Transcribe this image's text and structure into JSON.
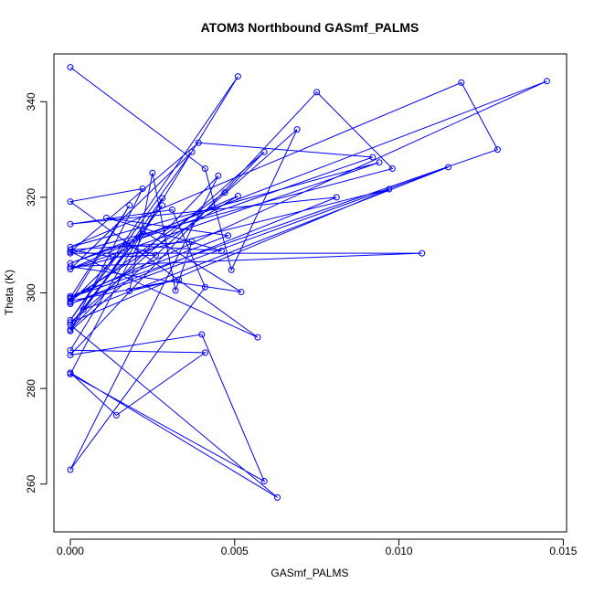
{
  "chart_data": {
    "type": "line",
    "title": "ATOM3 Northbound GASmf_PALMS",
    "xlabel": "GASmf_PALMS",
    "ylabel": "Theta (K)",
    "xlim": [
      -0.0005,
      0.0151
    ],
    "ylim": [
      250,
      350
    ],
    "x_ticks": [
      0.0,
      0.005,
      0.01,
      0.015
    ],
    "x_tick_labels": [
      "0.000",
      "0.005",
      "0.010",
      "0.015"
    ],
    "y_ticks": [
      260,
      280,
      300,
      320,
      340
    ],
    "y_tick_labels": [
      "260",
      "280",
      "300",
      "320",
      "340"
    ],
    "grid": false,
    "color": "#0000ff",
    "series": [
      {
        "points": [
          [
            0.0,
            347.2
          ],
          [
            0.0041,
            326.0
          ],
          [
            0.0049,
            304.8
          ],
          [
            0.0069,
            334.2
          ],
          [
            0.0,
            292.0
          ],
          [
            0.0022,
            321.8
          ],
          [
            0.0,
            319.1
          ],
          [
            0.0057,
            290.7
          ],
          [
            0.0,
            308.6
          ],
          [
            0.0039,
            331.4
          ],
          [
            0.0092,
            328.4
          ],
          [
            0.0,
            306.2
          ],
          [
            0.0145,
            344.3
          ],
          [
            0.0,
            298.8
          ],
          [
            0.0051,
            320.3
          ],
          [
            0.0,
            305.0
          ],
          [
            0.0037,
            329.5
          ],
          [
            0.0,
            294.3
          ],
          [
            0.0051,
            345.3
          ],
          [
            0.0,
            288.0
          ],
          [
            0.0041,
            287.5
          ],
          [
            0.0014,
            274.4
          ],
          [
            0.0,
            283.3
          ],
          [
            0.0063,
            257.2
          ],
          [
            0.0,
            293.3
          ],
          [
            0.0028,
            318.3
          ],
          [
            0.0004,
            296.5
          ],
          [
            0.0115,
            326.3
          ],
          [
            0.0,
            297.7
          ],
          [
            0.0081,
            320.0
          ],
          [
            0.0,
            314.4
          ],
          [
            0.0031,
            317.4
          ],
          [
            0.0041,
            301.2
          ],
          [
            0.0,
            263.0
          ],
          [
            0.0045,
            324.5
          ],
          [
            0.0,
            292.3
          ],
          [
            0.0028,
            319.8
          ],
          [
            0.0,
            283.0
          ],
          [
            0.0059,
            260.6
          ],
          [
            0.004,
            291.3
          ],
          [
            0.0,
            287.0
          ],
          [
            0.0075,
            342.0
          ],
          [
            0.0098,
            326.0
          ],
          [
            0.0,
            308.3
          ],
          [
            0.0107,
            308.3
          ],
          [
            0.0,
            305.5
          ],
          [
            0.0052,
            300.2
          ],
          [
            0.0022,
            313.0
          ],
          [
            0.0,
            298.0
          ],
          [
            0.0018,
            318.3
          ],
          [
            0.0,
            299.0
          ],
          [
            0.013,
            330.0
          ],
          [
            0.0119,
            344.0
          ],
          [
            0.0,
            309.6
          ],
          [
            0.0094,
            327.3
          ],
          [
            0.0,
            305.0
          ],
          [
            0.0097,
            321.7
          ],
          [
            0.0,
            293.8
          ],
          [
            0.0059,
            329.5
          ],
          [
            0.0047,
            321.0
          ],
          [
            0.0,
            298.3
          ],
          [
            0.0033,
            302.8
          ],
          [
            0.0018,
            300.4
          ],
          [
            0.0025,
            325.1
          ],
          [
            0.0032,
            300.5
          ],
          [
            0.0037,
            310.7
          ],
          [
            0.0,
            309.0
          ],
          [
            0.0013,
            307.5
          ],
          [
            0.0026,
            307.9
          ],
          [
            0.0017,
            310.0
          ],
          [
            0.0046,
            308.8
          ],
          [
            0.0011,
            315.7
          ],
          [
            0.0048,
            312.0
          ],
          [
            0.0,
            299.3
          ]
        ]
      }
    ]
  }
}
